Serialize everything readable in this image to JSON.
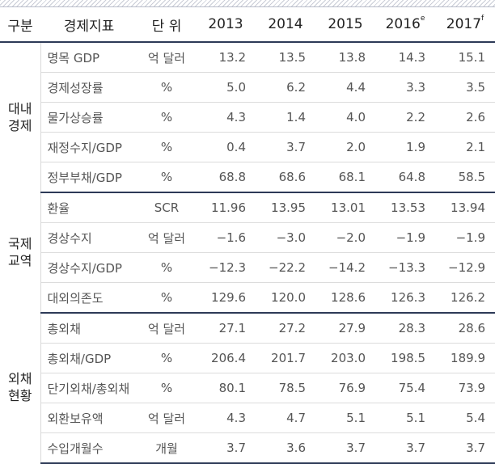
{
  "header": {
    "category": "구분",
    "indicator": "경제지표",
    "unit": "단 위",
    "years": [
      {
        "year": "2013",
        "sup": ""
      },
      {
        "year": "2014",
        "sup": ""
      },
      {
        "year": "2015",
        "sup": ""
      },
      {
        "year": "2016",
        "sup": "e"
      },
      {
        "year": "2017",
        "sup": "f"
      }
    ]
  },
  "sections": [
    {
      "label": "대내\n경제",
      "rows": [
        {
          "indicator": "명목 GDP",
          "unit": "억 달러",
          "values": [
            "13.2",
            "13.5",
            "13.8",
            "14.3",
            "15.1"
          ]
        },
        {
          "indicator": "경제성장률",
          "unit": "%",
          "values": [
            "5.0",
            "6.2",
            "4.4",
            "3.3",
            "3.5"
          ]
        },
        {
          "indicator": "물가상승률",
          "unit": "%",
          "values": [
            "4.3",
            "1.4",
            "4.0",
            "2.2",
            "2.6"
          ]
        },
        {
          "indicator": "재정수지/GDP",
          "unit": "%",
          "values": [
            "0.4",
            "3.7",
            "2.0",
            "1.9",
            "2.1"
          ]
        },
        {
          "indicator": "정부부채/GDP",
          "unit": "%",
          "values": [
            "68.8",
            "68.6",
            "68.1",
            "64.8",
            "58.5"
          ]
        }
      ]
    },
    {
      "label": "국제\n교역",
      "rows": [
        {
          "indicator": "환율",
          "unit": "SCR",
          "values": [
            "11.96",
            "13.95",
            "13.01",
            "13.53",
            "13.94"
          ]
        },
        {
          "indicator": "경상수지",
          "unit": "억 달러",
          "values": [
            "−1.6",
            "−3.0",
            "−2.0",
            "−1.9",
            "−1.9"
          ]
        },
        {
          "indicator": "경상수지/GDP",
          "unit": "%",
          "values": [
            "−12.3",
            "−22.2",
            "−14.2",
            "−13.3",
            "−12.9"
          ]
        },
        {
          "indicator": "대외의존도",
          "unit": "%",
          "values": [
            "129.6",
            "120.0",
            "128.6",
            "126.3",
            "126.2"
          ]
        }
      ]
    },
    {
      "label": "외채\n현황",
      "rows": [
        {
          "indicator": "총외채",
          "unit": "억 달러",
          "values": [
            "27.1",
            "27.2",
            "27.9",
            "28.3",
            "28.6"
          ]
        },
        {
          "indicator": "총외채/GDP",
          "unit": "%",
          "values": [
            "206.4",
            "201.7",
            "203.0",
            "198.5",
            "189.9"
          ]
        },
        {
          "indicator": "단기외채/총외채",
          "unit": "%",
          "values": [
            "80.1",
            "78.5",
            "76.9",
            "75.4",
            "73.9"
          ]
        },
        {
          "indicator": "외환보유액",
          "unit": "억 달러",
          "values": [
            "4.3",
            "4.7",
            "5.1",
            "5.1",
            "5.4"
          ]
        },
        {
          "indicator": "수입개월수",
          "unit": "개월",
          "values": [
            "3.7",
            "3.6",
            "3.7",
            "3.7",
            "3.7"
          ]
        }
      ]
    }
  ]
}
